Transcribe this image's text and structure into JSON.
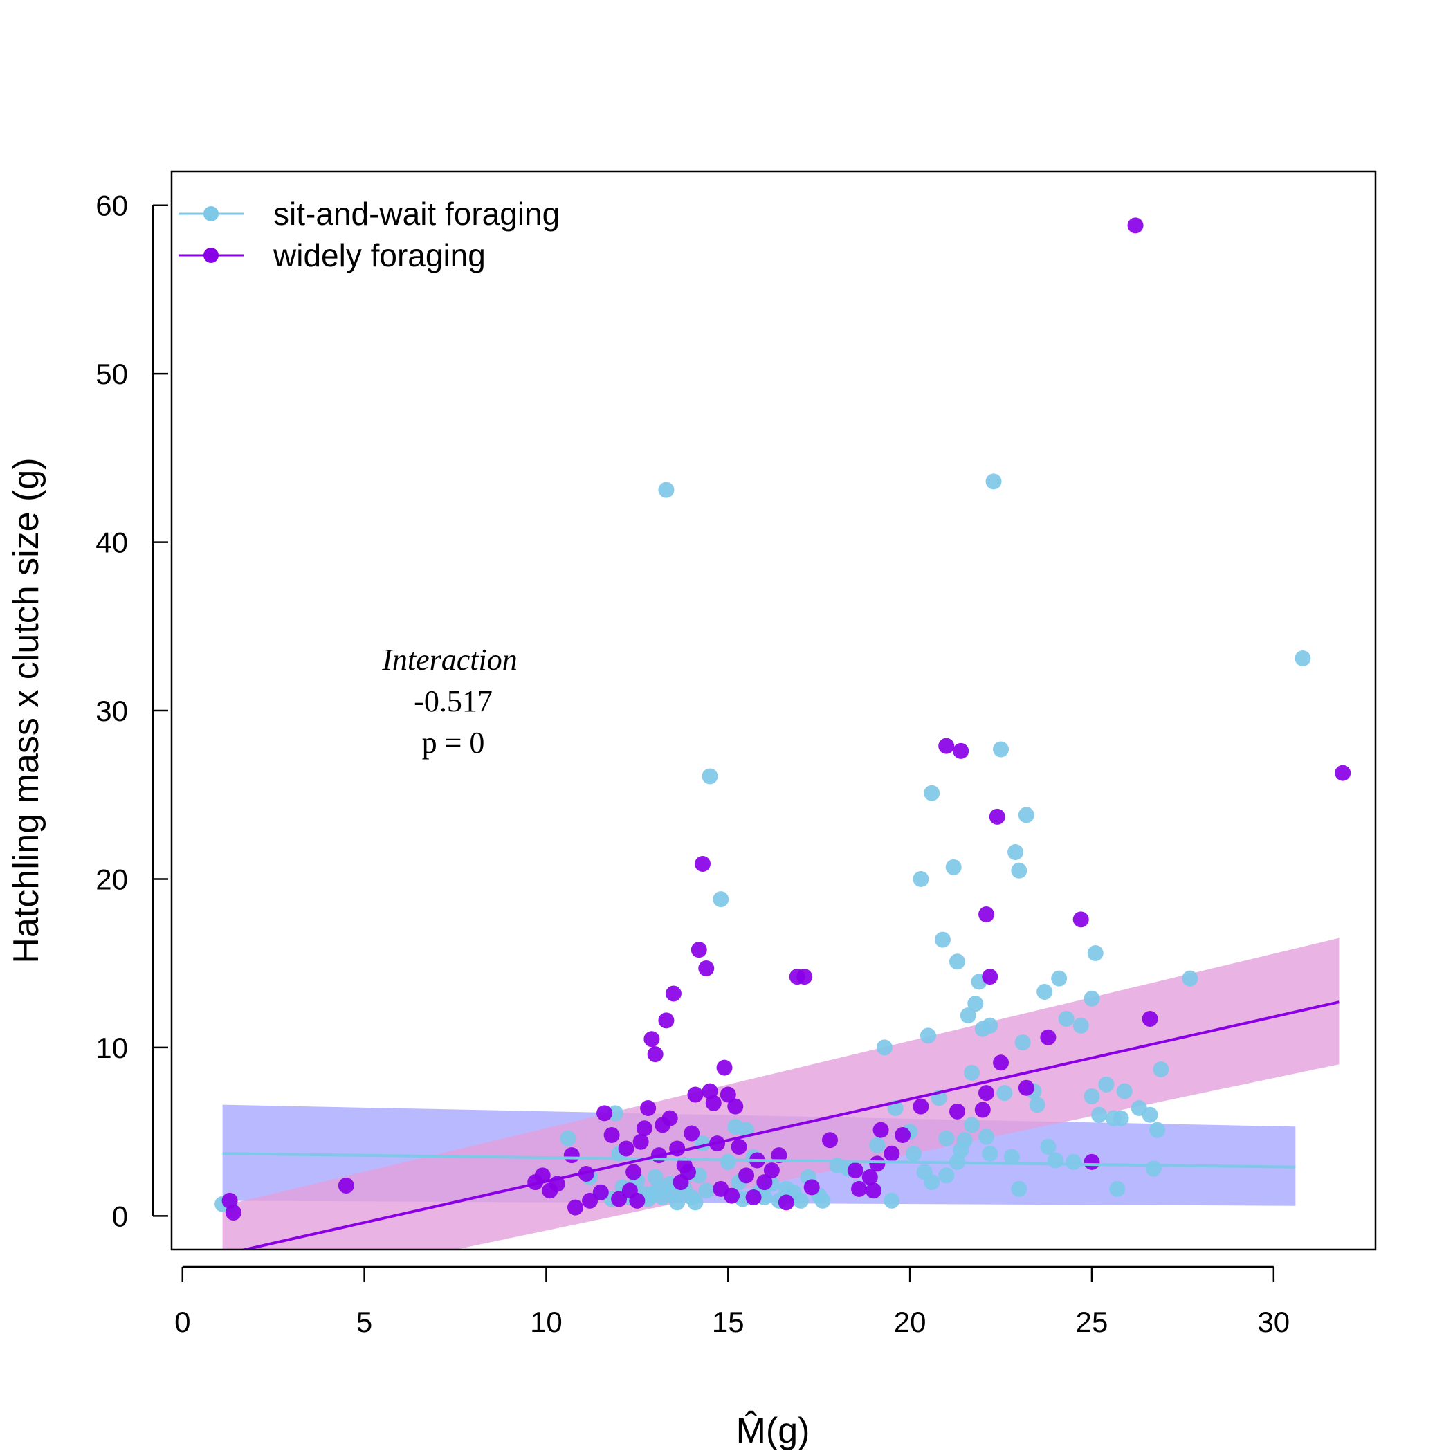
{
  "chart_data": {
    "type": "scatter",
    "xlabel": "M̂(g)",
    "ylabel": "Hatchling mass x clutch size (g)",
    "xlim": [
      -0.3,
      32.8
    ],
    "ylim": [
      -2,
      62
    ],
    "xticks": [
      "0",
      "5",
      "10",
      "15",
      "20",
      "25",
      "30"
    ],
    "yticks": [
      "0",
      "10",
      "20",
      "30",
      "40",
      "50",
      "60"
    ],
    "legend_position": "top-left",
    "grid": false,
    "annotation": {
      "title": "Interaction",
      "value": "-0.517",
      "pvalue": "p =  0"
    },
    "series": [
      {
        "name": "sit-and-wait foraging",
        "color": "#7ec8e8",
        "band_color": "#a7a7ff",
        "fit": {
          "x": [
            1.1,
            30.6
          ],
          "y": [
            3.7,
            2.9
          ]
        },
        "band": {
          "x": [
            1.1,
            30.6
          ],
          "lower": [
            0.9,
            0.6
          ],
          "upper": [
            6.6,
            5.3
          ]
        },
        "points": [
          [
            1.1,
            0.7
          ],
          [
            1.3,
            0.7
          ],
          [
            10.6,
            4.6
          ],
          [
            11.2,
            2.3
          ],
          [
            11.5,
            1.4
          ],
          [
            11.8,
            1.0
          ],
          [
            11.9,
            6.1
          ],
          [
            12.0,
            3.7
          ],
          [
            12.1,
            1.7
          ],
          [
            12.3,
            1.1
          ],
          [
            12.5,
            2.1
          ],
          [
            12.7,
            1.3
          ],
          [
            12.8,
            1.0
          ],
          [
            12.9,
            1.3
          ],
          [
            13.0,
            2.3
          ],
          [
            13.1,
            1.6
          ],
          [
            13.2,
            1.1
          ],
          [
            13.3,
            43.1
          ],
          [
            13.4,
            1.9
          ],
          [
            13.5,
            1.4
          ],
          [
            13.6,
            0.8
          ],
          [
            13.8,
            1.6
          ],
          [
            13.9,
            2.5
          ],
          [
            14.0,
            1.1
          ],
          [
            14.1,
            0.8
          ],
          [
            14.2,
            2.4
          ],
          [
            14.3,
            4.3
          ],
          [
            14.4,
            1.5
          ],
          [
            14.5,
            26.1
          ],
          [
            14.8,
            18.8
          ],
          [
            15.0,
            3.2
          ],
          [
            15.2,
            5.3
          ],
          [
            15.3,
            2.0
          ],
          [
            15.4,
            1.0
          ],
          [
            15.5,
            5.1
          ],
          [
            15.7,
            3.5
          ],
          [
            15.9,
            1.5
          ],
          [
            16.0,
            1.1
          ],
          [
            16.2,
            1.9
          ],
          [
            16.4,
            0.9
          ],
          [
            16.6,
            1.6
          ],
          [
            16.8,
            1.4
          ],
          [
            17.0,
            0.9
          ],
          [
            17.2,
            2.3
          ],
          [
            17.5,
            1.2
          ],
          [
            17.6,
            0.9
          ],
          [
            18.0,
            3.0
          ],
          [
            18.3,
            2.8
          ],
          [
            19.3,
            10.0
          ],
          [
            19.5,
            0.9
          ],
          [
            19.6,
            6.4
          ],
          [
            20.0,
            5.0
          ],
          [
            20.1,
            3.7
          ],
          [
            20.3,
            20.0
          ],
          [
            20.5,
            10.7
          ],
          [
            20.6,
            25.1
          ],
          [
            20.8,
            7.0
          ],
          [
            20.9,
            16.4
          ],
          [
            21.0,
            4.6
          ],
          [
            21.2,
            20.7
          ],
          [
            21.3,
            15.1
          ],
          [
            21.4,
            3.9
          ],
          [
            21.5,
            4.5
          ],
          [
            21.6,
            11.9
          ],
          [
            21.7,
            5.4
          ],
          [
            21.8,
            12.6
          ],
          [
            21.9,
            13.9
          ],
          [
            22.0,
            11.1
          ],
          [
            22.1,
            4.7
          ],
          [
            22.2,
            11.3
          ],
          [
            22.3,
            43.6
          ],
          [
            22.5,
            27.7
          ],
          [
            22.6,
            7.3
          ],
          [
            22.8,
            3.5
          ],
          [
            22.9,
            21.6
          ],
          [
            23.0,
            20.5
          ],
          [
            23.1,
            10.3
          ],
          [
            23.2,
            23.8
          ],
          [
            23.4,
            7.4
          ],
          [
            23.5,
            6.6
          ],
          [
            23.7,
            13.3
          ],
          [
            23.8,
            4.1
          ],
          [
            24.0,
            3.3
          ],
          [
            24.1,
            14.1
          ],
          [
            24.3,
            11.7
          ],
          [
            24.5,
            3.2
          ],
          [
            24.7,
            11.3
          ],
          [
            25.0,
            7.1
          ],
          [
            25.1,
            15.6
          ],
          [
            25.2,
            6.0
          ],
          [
            25.4,
            7.8
          ],
          [
            25.6,
            5.8
          ],
          [
            25.7,
            1.6
          ],
          [
            25.8,
            5.8
          ],
          [
            25.9,
            7.4
          ],
          [
            26.3,
            6.4
          ],
          [
            26.6,
            6.0
          ],
          [
            26.7,
            2.8
          ],
          [
            26.8,
            5.1
          ],
          [
            26.9,
            8.7
          ],
          [
            27.7,
            14.1
          ],
          [
            30.8,
            33.1
          ],
          [
            20.6,
            2.0
          ],
          [
            21.0,
            2.4
          ],
          [
            20.4,
            2.6
          ],
          [
            22.2,
            3.7
          ],
          [
            21.3,
            3.2
          ],
          [
            23.0,
            1.6
          ],
          [
            25.0,
            12.9
          ],
          [
            21.7,
            8.5
          ],
          [
            19.1,
            4.2
          ]
        ]
      },
      {
        "name": "widely foraging",
        "color": "#8a00e6",
        "band_color": "#e3a0dc",
        "fit": {
          "x": [
            1.1,
            31.8
          ],
          "y": [
            -2.3,
            12.7
          ]
        },
        "band": {
          "x": [
            1.1,
            31.8
          ],
          "lower": [
            -4.9,
            9.0
          ],
          "upper": [
            0.6,
            16.5
          ]
        },
        "points": [
          [
            1.3,
            0.9
          ],
          [
            1.4,
            0.2
          ],
          [
            4.5,
            1.8
          ],
          [
            9.7,
            2.0
          ],
          [
            9.9,
            2.4
          ],
          [
            10.3,
            1.9
          ],
          [
            10.7,
            3.6
          ],
          [
            10.8,
            0.5
          ],
          [
            11.1,
            2.5
          ],
          [
            11.2,
            0.9
          ],
          [
            11.5,
            1.4
          ],
          [
            11.6,
            6.1
          ],
          [
            11.8,
            4.8
          ],
          [
            12.0,
            1.0
          ],
          [
            12.2,
            4.0
          ],
          [
            12.4,
            2.6
          ],
          [
            12.6,
            4.4
          ],
          [
            12.7,
            5.2
          ],
          [
            12.8,
            6.4
          ],
          [
            12.9,
            10.5
          ],
          [
            13.0,
            9.6
          ],
          [
            13.1,
            3.6
          ],
          [
            13.2,
            5.4
          ],
          [
            13.3,
            11.6
          ],
          [
            13.4,
            5.8
          ],
          [
            13.5,
            13.2
          ],
          [
            13.6,
            4.0
          ],
          [
            13.8,
            3.0
          ],
          [
            14.0,
            4.9
          ],
          [
            14.1,
            7.2
          ],
          [
            14.2,
            15.8
          ],
          [
            14.3,
            20.9
          ],
          [
            14.4,
            14.7
          ],
          [
            14.5,
            7.4
          ],
          [
            14.6,
            6.7
          ],
          [
            14.8,
            1.6
          ],
          [
            14.9,
            8.8
          ],
          [
            15.0,
            7.2
          ],
          [
            15.1,
            1.2
          ],
          [
            15.2,
            6.5
          ],
          [
            15.3,
            4.1
          ],
          [
            15.5,
            2.4
          ],
          [
            15.7,
            1.1
          ],
          [
            16.0,
            2.0
          ],
          [
            16.4,
            3.6
          ],
          [
            16.6,
            0.8
          ],
          [
            16.9,
            14.2
          ],
          [
            17.1,
            14.2
          ],
          [
            17.3,
            1.7
          ],
          [
            17.8,
            4.5
          ],
          [
            18.6,
            1.6
          ],
          [
            18.9,
            2.3
          ],
          [
            19.1,
            3.1
          ],
          [
            19.2,
            5.1
          ],
          [
            19.5,
            3.7
          ],
          [
            21.0,
            27.9
          ],
          [
            21.3,
            6.2
          ],
          [
            21.4,
            27.6
          ],
          [
            22.0,
            6.3
          ],
          [
            22.1,
            17.9
          ],
          [
            22.2,
            14.2
          ],
          [
            22.4,
            23.7
          ],
          [
            22.5,
            9.1
          ],
          [
            23.2,
            7.6
          ],
          [
            23.8,
            10.6
          ],
          [
            24.7,
            17.6
          ],
          [
            25.0,
            3.2
          ],
          [
            26.2,
            58.8
          ],
          [
            26.6,
            11.7
          ],
          [
            31.9,
            26.3
          ],
          [
            12.3,
            1.5
          ],
          [
            13.7,
            2.0
          ],
          [
            18.5,
            2.7
          ],
          [
            19.8,
            4.8
          ],
          [
            22.1,
            7.3
          ],
          [
            10.1,
            1.5
          ],
          [
            15.8,
            3.3
          ],
          [
            19.0,
            1.5
          ],
          [
            14.7,
            4.3
          ],
          [
            12.5,
            0.9
          ],
          [
            16.2,
            2.7
          ],
          [
            20.3,
            6.5
          ],
          [
            13.9,
            2.6
          ]
        ]
      }
    ]
  }
}
